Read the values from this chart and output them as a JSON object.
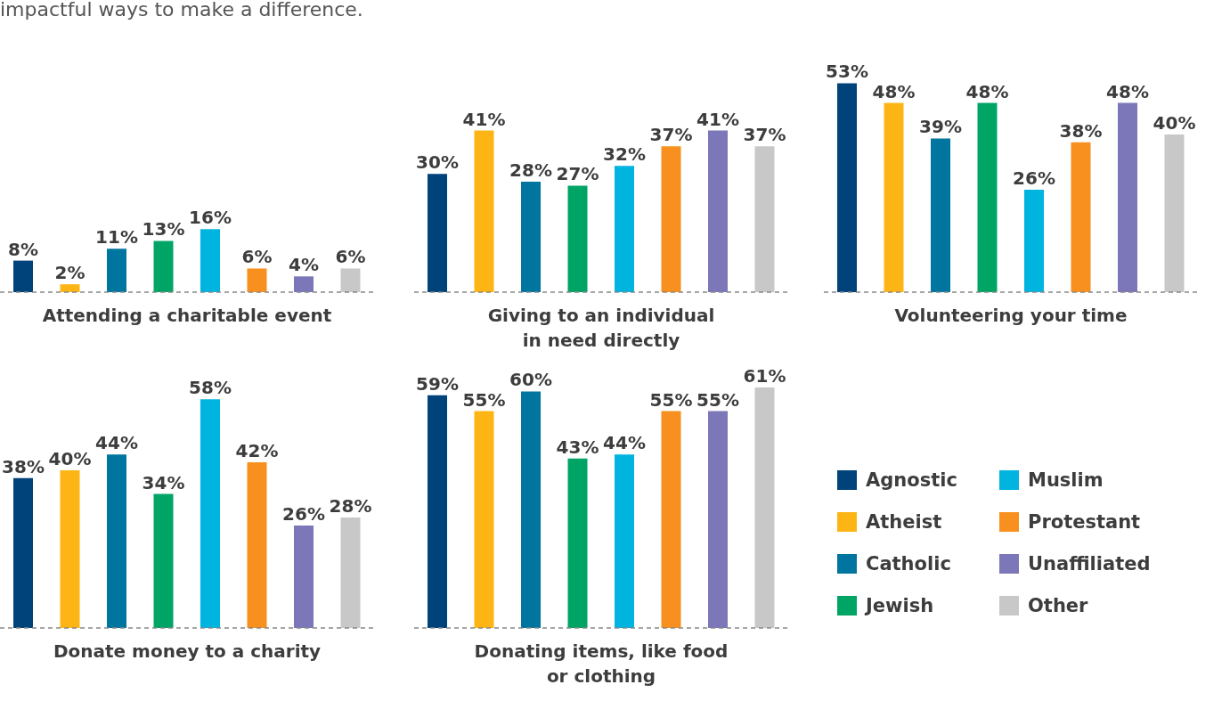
{
  "chart_data": [
    {
      "type": "bar",
      "subtitle": "impactful ways to make a difference.",
      "xlabel": "Attending a charitable event",
      "tick_labels": false,
      "categories": [
        null,
        null,
        null,
        null,
        null,
        null,
        null,
        null
      ],
      "values": [
        8,
        2,
        11,
        13,
        16,
        6,
        4,
        6
      ],
      "value_labels": [
        "8%",
        "2%",
        "11%",
        "13%",
        "16%",
        "6%",
        "4%",
        "6%"
      ],
      "colors": [
        "#00427a",
        "#fdb515",
        "#00759f",
        "#00a566",
        "#00b4e0",
        "#f7901e",
        "#7b77b8",
        "#c8c8c8"
      ]
    },
    {
      "type": "bar",
      "xlabel": "Giving to an individual\nin need directly",
      "tick_labels": false,
      "categories": [
        null,
        null,
        null,
        null,
        null,
        null,
        null,
        null
      ],
      "values": [
        30,
        41,
        28,
        27,
        32,
        37,
        41,
        37
      ],
      "value_labels": [
        "30%",
        "41%",
        "28%",
        "27%",
        "32%",
        "37%",
        "41%",
        "37%"
      ],
      "colors": [
        "#00427a",
        "#fdb515",
        "#00759f",
        "#00a566",
        "#00b4e0",
        "#f7901e",
        "#7b77b8",
        "#c8c8c8"
      ]
    },
    {
      "type": "bar",
      "xlabel": "Volunteering your time",
      "tick_labels": false,
      "categories": [
        null,
        null,
        null,
        null,
        null,
        null,
        null,
        null
      ],
      "values": [
        53,
        48,
        39,
        48,
        26,
        38,
        48,
        40
      ],
      "value_labels": [
        "53%",
        "48%",
        "39%",
        "48%",
        "26%",
        "38%",
        "48%",
        "40%"
      ],
      "colors": [
        "#00427a",
        "#fdb515",
        "#00759f",
        "#00a566",
        "#00b4e0",
        "#f7901e",
        "#7b77b8",
        "#c8c8c8"
      ]
    },
    {
      "type": "bar",
      "xlabel": "Donate money to a charity",
      "tick_labels": false,
      "categories": [
        null,
        null,
        null,
        null,
        null,
        null,
        null,
        null
      ],
      "values": [
        38,
        40,
        44,
        34,
        58,
        42,
        26,
        28
      ],
      "value_labels": [
        "38%",
        "40%",
        "44%",
        "34%",
        "58%",
        "42%",
        "26%",
        "28%"
      ],
      "colors": [
        "#00427a",
        "#fdb515",
        "#00759f",
        "#00a566",
        "#00b4e0",
        "#f7901e",
        "#7b77b8",
        "#c8c8c8"
      ]
    },
    {
      "type": "bar",
      "xlabel": "Donating items, like food\nor clothing",
      "tick_labels": false,
      "legend": "right",
      "categories": [
        null,
        null,
        null,
        null,
        null,
        null,
        null,
        null
      ],
      "series": [
        {
          "name": "Agnostic",
          "color": "#00427a",
          "values": [
            59,
            null,
            null,
            null,
            null,
            null,
            null,
            null
          ],
          "value_labels": [
            "59%",
            null,
            null,
            null,
            null,
            null,
            null,
            null
          ]
        },
        {
          "name": "Atheist",
          "color": "#fdb515",
          "values": [
            null,
            55,
            null,
            null,
            null,
            null,
            null,
            null
          ],
          "value_labels": [
            null,
            "55%",
            null,
            null,
            null,
            null,
            null,
            null
          ]
        },
        {
          "name": "Catholic",
          "color": "#00759f",
          "values": [
            null,
            null,
            60,
            null,
            null,
            null,
            null,
            null
          ],
          "value_labels": [
            null,
            null,
            "60%",
            null,
            null,
            null,
            null,
            null
          ]
        },
        {
          "name": "Jewish",
          "color": "#00a566",
          "values": [
            null,
            null,
            null,
            43,
            null,
            null,
            null,
            null
          ],
          "value_labels": [
            null,
            null,
            null,
            "43%",
            null,
            null,
            null,
            null
          ]
        },
        {
          "name": "Muslim",
          "color": "#00b4e0",
          "values": [
            null,
            null,
            null,
            null,
            44,
            null,
            null,
            null
          ],
          "value_labels": [
            null,
            null,
            null,
            null,
            "44%",
            null,
            null,
            null
          ]
        },
        {
          "name": "Protestant",
          "color": "#f7901e",
          "values": [
            null,
            null,
            null,
            null,
            null,
            55,
            null,
            null
          ],
          "value_labels": [
            null,
            null,
            null,
            null,
            null,
            "55%",
            null,
            null
          ]
        },
        {
          "name": "Unaffiliated",
          "color": "#7b77b8",
          "values": [
            null,
            null,
            null,
            null,
            null,
            null,
            55,
            null
          ],
          "value_labels": [
            null,
            null,
            null,
            null,
            null,
            null,
            "55%",
            null
          ]
        },
        {
          "name": "Other",
          "color": "#c8c8c8",
          "values": [
            null,
            null,
            null,
            null,
            null,
            null,
            null,
            61
          ],
          "value_labels": [
            null,
            null,
            null,
            null,
            null,
            null,
            null,
            "61%"
          ]
        }
      ]
    }
  ]
}
